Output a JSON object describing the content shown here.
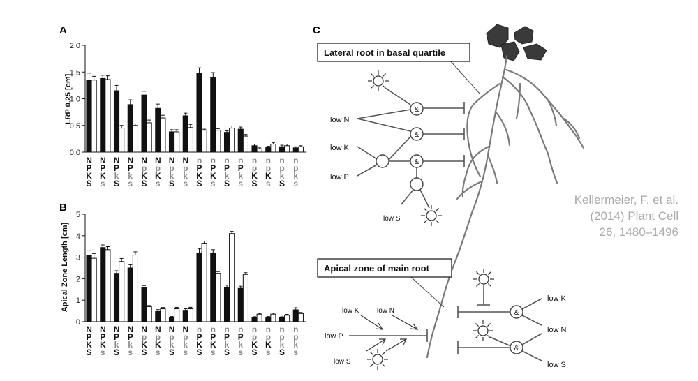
{
  "chart_data": [
    {
      "type": "bar",
      "panel": "A",
      "ylabel": "LRP 0.25 [cm]",
      "ylim": [
        0,
        2.0
      ],
      "yticks": [
        "0.0",
        "0.5",
        "1.0",
        "1.5",
        "2.0"
      ],
      "ytick_values": [
        0,
        0.5,
        1.0,
        1.5,
        2.0
      ],
      "categories": [
        [
          "N",
          "P",
          "K",
          "S"
        ],
        [
          "N",
          "P",
          "K",
          "s"
        ],
        [
          "N",
          "P",
          "k",
          "S"
        ],
        [
          "N",
          "P",
          "k",
          "s"
        ],
        [
          "N",
          "p",
          "K",
          "S"
        ],
        [
          "N",
          "p",
          "K",
          "s"
        ],
        [
          "N",
          "p",
          "k",
          "S"
        ],
        [
          "N",
          "p",
          "k",
          "s"
        ],
        [
          "n",
          "P",
          "K",
          "S"
        ],
        [
          "n",
          "P",
          "K",
          "s"
        ],
        [
          "n",
          "P",
          "k",
          "S"
        ],
        [
          "n",
          "P",
          "k",
          "s"
        ],
        [
          "n",
          "p",
          "K",
          "S"
        ],
        [
          "n",
          "p",
          "K",
          "s"
        ],
        [
          "n",
          "p",
          "k",
          "S"
        ],
        [
          "n",
          "p",
          "k",
          "s"
        ]
      ],
      "series": [
        {
          "name": "black",
          "color": "#111111",
          "values": [
            1.35,
            1.38,
            1.15,
            0.89,
            1.07,
            0.82,
            0.38,
            0.68,
            1.48,
            1.4,
            0.37,
            0.43,
            0.12,
            0.09,
            0.1,
            0.08
          ],
          "err": [
            0.13,
            0.06,
            0.1,
            0.09,
            0.07,
            0.08,
            0.04,
            0.05,
            0.1,
            0.09,
            0.03,
            0.04,
            0.03,
            0.02,
            0.03,
            0.02
          ]
        },
        {
          "name": "white",
          "color": "#ffffff",
          "values": [
            1.35,
            1.36,
            0.45,
            0.5,
            0.55,
            0.64,
            0.38,
            0.46,
            0.41,
            0.41,
            0.45,
            0.3,
            0.06,
            0.15,
            0.12,
            0.1
          ],
          "err": [
            0.07,
            0.07,
            0.05,
            0.03,
            0.05,
            0.05,
            0.04,
            0.06,
            0.02,
            0.03,
            0.04,
            0.03,
            0.02,
            0.03,
            0.03,
            0.02
          ]
        }
      ]
    },
    {
      "type": "bar",
      "panel": "B",
      "ylabel": "Apical Zone Length [cm]",
      "ylim": [
        0,
        5
      ],
      "yticks": [
        "0",
        "1",
        "2",
        "3",
        "4",
        "5"
      ],
      "ytick_values": [
        0,
        1,
        2,
        3,
        4,
        5
      ],
      "categories": [
        [
          "N",
          "P",
          "K",
          "S"
        ],
        [
          "N",
          "P",
          "K",
          "s"
        ],
        [
          "N",
          "P",
          "k",
          "S"
        ],
        [
          "N",
          "P",
          "k",
          "s"
        ],
        [
          "N",
          "p",
          "K",
          "S"
        ],
        [
          "N",
          "p",
          "K",
          "s"
        ],
        [
          "N",
          "p",
          "k",
          "S"
        ],
        [
          "N",
          "p",
          "k",
          "s"
        ],
        [
          "n",
          "P",
          "K",
          "S"
        ],
        [
          "n",
          "P",
          "K",
          "s"
        ],
        [
          "n",
          "P",
          "k",
          "S"
        ],
        [
          "n",
          "P",
          "k",
          "s"
        ],
        [
          "n",
          "p",
          "K",
          "S"
        ],
        [
          "n",
          "p",
          "K",
          "s"
        ],
        [
          "n",
          "p",
          "k",
          "S"
        ],
        [
          "n",
          "p",
          "k",
          "s"
        ]
      ],
      "series": [
        {
          "name": "black",
          "color": "#111111",
          "values": [
            3.1,
            3.45,
            2.25,
            2.5,
            1.6,
            0.5,
            0.2,
            0.53,
            3.2,
            3.2,
            1.6,
            1.55,
            0.2,
            0.2,
            0.2,
            0.55
          ],
          "err": [
            0.2,
            0.12,
            0.12,
            0.15,
            0.08,
            0.06,
            0.04,
            0.07,
            0.2,
            0.15,
            0.1,
            0.1,
            0.03,
            0.04,
            0.03,
            0.1
          ]
        },
        {
          "name": "white",
          "color": "#ffffff",
          "values": [
            2.95,
            3.35,
            2.8,
            3.1,
            0.7,
            0.6,
            0.6,
            0.6,
            3.65,
            2.25,
            4.1,
            2.2,
            0.35,
            0.35,
            0.3,
            0.38
          ],
          "err": [
            0.22,
            0.14,
            0.14,
            0.15,
            0.05,
            0.06,
            0.07,
            0.07,
            0.1,
            0.08,
            0.1,
            0.08,
            0.04,
            0.05,
            0.04,
            0.05
          ]
        }
      ]
    }
  ],
  "diagram": {
    "panel_label": "C",
    "box_lateral": "Lateral root in basal quartile",
    "box_apical": "Apical zone of main root",
    "lateral_labels": {
      "low_n": "low N",
      "low_k": "low K",
      "low_p": "low P",
      "low_s": "low S",
      "amp": "&"
    },
    "apical_labels": {
      "low_k": "low K",
      "low_n": "low N",
      "low_p": "low P",
      "low_s": "low S",
      "right_low_k": "low K",
      "right_low_n": "low N",
      "right_low_s": "low S",
      "amp": "&"
    }
  },
  "citation": {
    "line1": "Kellermeier, F. et al.",
    "line2": "(2014)  Plant Cell",
    "line3": "26, 1480–1496"
  }
}
